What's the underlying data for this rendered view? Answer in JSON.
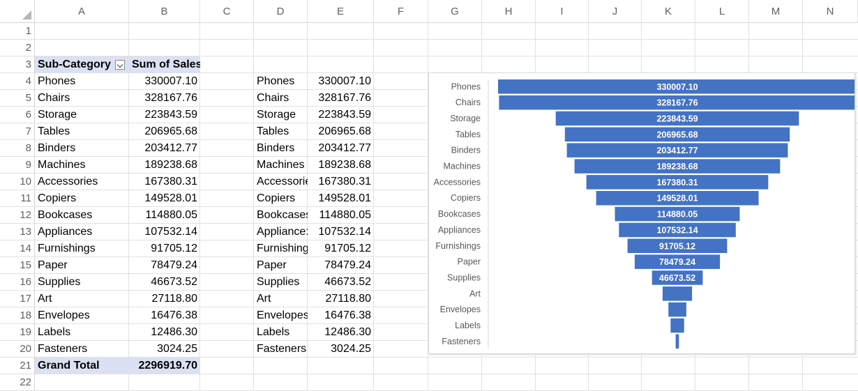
{
  "columns": [
    "A",
    "B",
    "C",
    "D",
    "E",
    "F",
    "G",
    "H",
    "I",
    "J",
    "K",
    "L",
    "M",
    "N"
  ],
  "rows": [
    "1",
    "2",
    "3",
    "4",
    "5",
    "6",
    "7",
    "8",
    "9",
    "10",
    "11",
    "12",
    "13",
    "14",
    "15",
    "16",
    "17",
    "18",
    "19",
    "20",
    "21",
    "22"
  ],
  "pivot": {
    "header_label": "Sub-Category",
    "header_value": "Sum of Sales",
    "items": [
      {
        "label": "Phones",
        "value": "330007.10"
      },
      {
        "label": "Chairs",
        "value": "328167.76"
      },
      {
        "label": "Storage",
        "value": "223843.59"
      },
      {
        "label": "Tables",
        "value": "206965.68"
      },
      {
        "label": "Binders",
        "value": "203412.77"
      },
      {
        "label": "Machines",
        "value": "189238.68"
      },
      {
        "label": "Accessories",
        "value": "167380.31"
      },
      {
        "label": "Copiers",
        "value": "149528.01"
      },
      {
        "label": "Bookcases",
        "value": "114880.05"
      },
      {
        "label": "Appliances",
        "value": "107532.14"
      },
      {
        "label": "Furnishings",
        "value": "91705.12"
      },
      {
        "label": "Paper",
        "value": "78479.24"
      },
      {
        "label": "Supplies",
        "value": "46673.52"
      },
      {
        "label": "Art",
        "value": "27118.80"
      },
      {
        "label": "Envelopes",
        "value": "16476.38"
      },
      {
        "label": "Labels",
        "value": "12486.30"
      },
      {
        "label": "Fasteners",
        "value": "3024.25"
      }
    ],
    "grand_total_label": "Grand Total",
    "grand_total_value": "2296919.70"
  },
  "copy_table": {
    "items": [
      {
        "label": "Phones",
        "value": "330007.10"
      },
      {
        "label": "Chairs",
        "value": "328167.76"
      },
      {
        "label": "Storage",
        "value": "223843.59"
      },
      {
        "label": "Tables",
        "value": "206965.68"
      },
      {
        "label": "Binders",
        "value": "203412.77"
      },
      {
        "label": "Machines",
        "value": "189238.68"
      },
      {
        "label": "Accessorie",
        "value": "167380.31"
      },
      {
        "label": "Copiers",
        "value": "149528.01"
      },
      {
        "label": "Bookcases",
        "value": "114880.05"
      },
      {
        "label": "Appliance:",
        "value": "107532.14"
      },
      {
        "label": "Furnishing",
        "value": "91705.12"
      },
      {
        "label": "Paper",
        "value": "78479.24"
      },
      {
        "label": "Supplies",
        "value": "46673.52"
      },
      {
        "label": "Art",
        "value": "27118.80"
      },
      {
        "label": "Envelopes",
        "value": "16476.38"
      },
      {
        "label": "Labels",
        "value": "12486.30"
      },
      {
        "label": "Fasteners",
        "value": "3024.25"
      }
    ]
  },
  "chart_data": {
    "type": "bar",
    "subtype": "funnel",
    "categories": [
      "Phones",
      "Chairs",
      "Storage",
      "Tables",
      "Binders",
      "Machines",
      "Accessories",
      "Copiers",
      "Bookcases",
      "Appliances",
      "Furnishings",
      "Paper",
      "Supplies",
      "Art",
      "Envelopes",
      "Labels",
      "Fasteners"
    ],
    "values": [
      330007.1,
      328167.76,
      223843.59,
      206965.68,
      203412.77,
      189238.68,
      167380.31,
      149528.01,
      114880.05,
      107532.14,
      91705.12,
      78479.24,
      46673.52,
      27118.8,
      16476.38,
      12486.3,
      3024.25
    ],
    "data_labels": [
      "330007.10",
      "328167.76",
      "223843.59",
      "206965.68",
      "203412.77",
      "189238.68",
      "167380.31",
      "149528.01",
      "114880.05",
      "107532.14",
      "91705.12",
      "78479.24",
      "46673.52",
      "",
      "",
      "",
      ""
    ],
    "bar_color": "#4472c4",
    "label_color": "#ffffff",
    "title": "",
    "legend": "none"
  }
}
